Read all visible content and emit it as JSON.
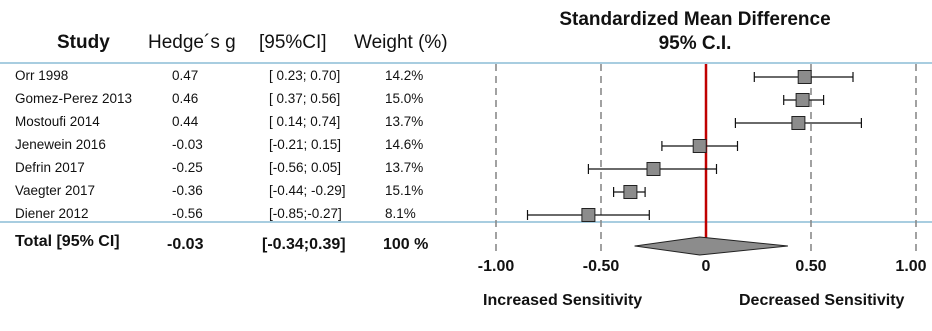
{
  "table": {
    "headers": {
      "study": "Study",
      "g": "Hedge´s g",
      "ci": "[95%CI]",
      "weight": "Weight (%)"
    },
    "rows": [
      {
        "study": "Orr 1998",
        "g": "0.47",
        "ci": "[ 0.23; 0.70]",
        "weight": "14.2%"
      },
      {
        "study": "Gomez-Perez 2013",
        "g": "0.46",
        "ci": "[ 0.37; 0.56]",
        "weight": "15.0%"
      },
      {
        "study": "Mostoufi 2014",
        "g": "0.44",
        "ci": "[ 0.14; 0.74]",
        "weight": "13.7%"
      },
      {
        "study": "Jenewein 2016",
        "g": "-0.03",
        "ci": "[-0.21; 0.15]",
        "weight": "14.6%"
      },
      {
        "study": "Defrin 2017",
        "g": "-0.25",
        "ci": "[-0.56; 0.05]",
        "weight": "13.7%"
      },
      {
        "study": "Vaegter 2017",
        "g": "-0.36",
        "ci": "[-0.44; -0.29]",
        "weight": "15.1%"
      },
      {
        "study": "Diener 2012",
        "g": "-0.56",
        "ci": "[-0.85;-0.27]",
        "weight": "8.1%"
      }
    ],
    "total": {
      "study": "Total [95% CI]",
      "g": "-0.03",
      "ci": "[-0.34;0.39]",
      "weight": "100 %"
    }
  },
  "chart_data": {
    "type": "forest",
    "title": "Standardized Mean Difference",
    "subtitle": "95% C.I.",
    "xlim": [
      -1.0,
      1.0
    ],
    "x_ticks": [
      -1.0,
      -0.5,
      0,
      0.5,
      1.0
    ],
    "x_tick_labels": [
      "-1.00",
      "-0.50",
      "0",
      "0.50",
      "1.00"
    ],
    "left_label": "Increased Sensitivity",
    "right_label": "Decreased Sensitivity",
    "studies": [
      {
        "name": "Orr 1998",
        "g": 0.47,
        "lo": 0.23,
        "hi": 0.7,
        "weight": 14.2
      },
      {
        "name": "Gomez-Perez 2013",
        "g": 0.46,
        "lo": 0.37,
        "hi": 0.56,
        "weight": 15.0
      },
      {
        "name": "Mostoufi 2014",
        "g": 0.44,
        "lo": 0.14,
        "hi": 0.74,
        "weight": 13.7
      },
      {
        "name": "Jenewein 2016",
        "g": -0.03,
        "lo": -0.21,
        "hi": 0.15,
        "weight": 14.6
      },
      {
        "name": "Defrin 2017",
        "g": -0.25,
        "lo": -0.56,
        "hi": 0.05,
        "weight": 13.7
      },
      {
        "name": "Vaegter 2017",
        "g": -0.36,
        "lo": -0.44,
        "hi": -0.29,
        "weight": 15.1
      },
      {
        "name": "Diener 2012",
        "g": -0.56,
        "lo": -0.85,
        "hi": -0.27,
        "weight": 8.1
      }
    ],
    "pooled": {
      "g": -0.03,
      "lo": -0.34,
      "hi": 0.39
    },
    "colors": {
      "marker": "#8c8c8c",
      "zero_line": "#c00000",
      "separator": "#a8cde0",
      "grid": "#8a8a8a"
    }
  }
}
